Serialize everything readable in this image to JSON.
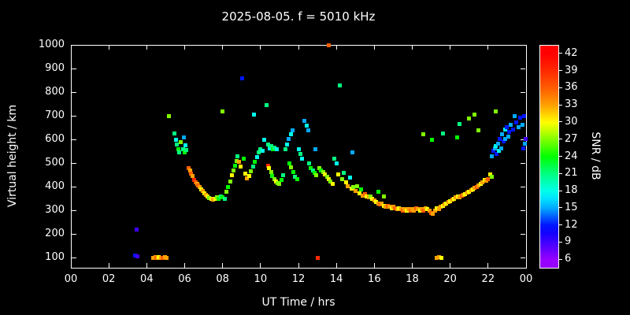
{
  "chart_data": {
    "type": "scatter",
    "title": "2025-08-05. f = 5010 kHz",
    "xlabel": "UT Time / hrs",
    "ylabel": "Virtual height / km",
    "colorbar_label": "SNR / dB",
    "background": "#000000",
    "axis_color": "#ffffff",
    "grid": false,
    "xlim_hours": [
      0,
      24
    ],
    "ylim": [
      100,
      1000
    ],
    "x_tick_hours": [
      0,
      2,
      4,
      6,
      8,
      10,
      12,
      14,
      16,
      18,
      20,
      22,
      24
    ],
    "x_tick_labels": [
      "00",
      "02",
      "04",
      "06",
      "08",
      "10",
      "12",
      "14",
      "16",
      "18",
      "20",
      "22",
      "00"
    ],
    "y_ticks": [
      100,
      200,
      300,
      400,
      500,
      600,
      700,
      800,
      900,
      1000
    ],
    "colorbar_ticks": [
      6,
      9,
      12,
      15,
      18,
      21,
      24,
      27,
      30,
      33,
      36,
      39,
      42
    ],
    "colorbar_range": [
      4.5,
      43.5
    ],
    "snr_hue_anchors": [
      [
        6,
        275
      ],
      [
        9,
        255
      ],
      [
        12,
        235
      ],
      [
        15,
        200
      ],
      [
        18,
        175
      ],
      [
        21,
        150
      ],
      [
        24,
        120
      ],
      [
        27,
        90
      ],
      [
        30,
        60
      ],
      [
        33,
        38
      ],
      [
        36,
        22
      ],
      [
        39,
        10
      ],
      [
        42,
        0
      ]
    ],
    "points": [
      [
        3.45,
        220,
        9
      ],
      [
        3.4,
        110,
        12
      ],
      [
        3.5,
        105,
        9
      ],
      [
        4.35,
        100,
        33
      ],
      [
        4.45,
        102,
        33
      ],
      [
        4.5,
        100,
        36
      ],
      [
        4.6,
        100,
        33
      ],
      [
        4.65,
        103,
        30
      ],
      [
        4.75,
        100,
        33
      ],
      [
        4.85,
        100,
        36
      ],
      [
        4.95,
        102,
        33
      ],
      [
        5.05,
        100,
        33
      ],
      [
        5.15,
        700,
        27
      ],
      [
        5.45,
        625,
        21
      ],
      [
        5.55,
        600,
        18
      ],
      [
        5.6,
        580,
        21
      ],
      [
        5.65,
        560,
        24
      ],
      [
        5.72,
        545,
        21
      ],
      [
        5.8,
        590,
        27
      ],
      [
        5.9,
        560,
        21
      ],
      [
        5.95,
        610,
        15
      ],
      [
        6.0,
        545,
        24
      ],
      [
        6.05,
        575,
        18
      ],
      [
        6.1,
        555,
        21
      ],
      [
        6.2,
        480,
        36
      ],
      [
        6.28,
        470,
        33
      ],
      [
        6.35,
        455,
        36
      ],
      [
        6.42,
        445,
        33
      ],
      [
        6.5,
        430,
        39
      ],
      [
        6.58,
        420,
        36
      ],
      [
        6.65,
        412,
        33
      ],
      [
        6.72,
        405,
        36
      ],
      [
        6.8,
        398,
        33
      ],
      [
        6.88,
        390,
        30
      ],
      [
        6.95,
        382,
        33
      ],
      [
        7.05,
        372,
        30
      ],
      [
        7.12,
        365,
        33
      ],
      [
        7.2,
        358,
        30
      ],
      [
        7.3,
        352,
        27
      ],
      [
        7.4,
        348,
        30
      ],
      [
        7.5,
        344,
        33
      ],
      [
        7.6,
        350,
        30
      ],
      [
        7.7,
        356,
        27
      ],
      [
        7.8,
        350,
        24
      ],
      [
        7.9,
        360,
        21
      ],
      [
        8.0,
        354,
        24
      ],
      [
        8.1,
        350,
        21
      ],
      [
        8.0,
        720,
        27
      ],
      [
        8.2,
        380,
        27
      ],
      [
        8.3,
        400,
        24
      ],
      [
        8.4,
        422,
        27
      ],
      [
        8.5,
        450,
        30
      ],
      [
        8.58,
        470,
        27
      ],
      [
        8.65,
        490,
        24
      ],
      [
        8.72,
        510,
        27
      ],
      [
        8.8,
        530,
        21
      ],
      [
        8.85,
        505,
        33
      ],
      [
        8.95,
        485,
        30
      ],
      [
        9.05,
        860,
        12
      ],
      [
        9.1,
        520,
        24
      ],
      [
        9.2,
        455,
        30
      ],
      [
        9.3,
        435,
        33
      ],
      [
        9.4,
        445,
        30
      ],
      [
        9.5,
        465,
        27
      ],
      [
        9.6,
        485,
        21
      ],
      [
        9.65,
        705,
        18
      ],
      [
        9.7,
        505,
        24
      ],
      [
        9.8,
        525,
        18
      ],
      [
        9.9,
        545,
        21
      ],
      [
        10.0,
        560,
        21
      ],
      [
        10.1,
        552,
        18
      ],
      [
        10.2,
        600,
        18
      ],
      [
        10.3,
        745,
        21
      ],
      [
        10.4,
        580,
        21
      ],
      [
        10.4,
        490,
        39
      ],
      [
        10.45,
        480,
        30
      ],
      [
        10.5,
        562,
        18
      ],
      [
        10.55,
        462,
        27
      ],
      [
        10.58,
        572,
        21
      ],
      [
        10.62,
        445,
        24
      ],
      [
        10.65,
        558,
        24
      ],
      [
        10.72,
        432,
        27
      ],
      [
        10.75,
        565,
        21
      ],
      [
        10.82,
        422,
        30
      ],
      [
        10.85,
        558,
        18
      ],
      [
        10.92,
        415,
        27
      ],
      [
        11.0,
        412,
        27
      ],
      [
        11.1,
        430,
        24
      ],
      [
        11.2,
        450,
        21
      ],
      [
        11.3,
        560,
        21
      ],
      [
        11.4,
        580,
        18
      ],
      [
        11.5,
        602,
        15
      ],
      [
        11.52,
        500,
        24
      ],
      [
        11.6,
        622,
        18
      ],
      [
        11.62,
        482,
        27
      ],
      [
        11.7,
        640,
        15
      ],
      [
        11.72,
        462,
        24
      ],
      [
        11.82,
        442,
        21
      ],
      [
        11.92,
        432,
        24
      ],
      [
        12.0,
        560,
        18
      ],
      [
        12.1,
        540,
        21
      ],
      [
        12.2,
        520,
        18
      ],
      [
        12.3,
        680,
        15
      ],
      [
        12.42,
        660,
        18
      ],
      [
        12.52,
        640,
        15
      ],
      [
        12.55,
        500,
        21
      ],
      [
        12.65,
        480,
        24
      ],
      [
        12.75,
        470,
        21
      ],
      [
        12.85,
        458,
        24
      ],
      [
        12.9,
        560,
        15
      ],
      [
        12.95,
        450,
        27
      ],
      [
        13.0,
        100,
        39
      ],
      [
        13.1,
        480,
        27
      ],
      [
        13.2,
        470,
        24
      ],
      [
        13.3,
        462,
        27
      ],
      [
        13.4,
        452,
        30
      ],
      [
        13.5,
        442,
        27
      ],
      [
        13.6,
        1000,
        36
      ],
      [
        13.6,
        432,
        30
      ],
      [
        13.7,
        422,
        27
      ],
      [
        13.8,
        412,
        30
      ],
      [
        13.9,
        520,
        21
      ],
      [
        14.0,
        500,
        18
      ],
      [
        14.1,
        452,
        30
      ],
      [
        14.2,
        830,
        21
      ],
      [
        14.3,
        432,
        27
      ],
      [
        14.4,
        460,
        21
      ],
      [
        14.5,
        420,
        30
      ],
      [
        14.6,
        402,
        33
      ],
      [
        14.7,
        440,
        18
      ],
      [
        14.8,
        392,
        30
      ],
      [
        14.85,
        545,
        15
      ],
      [
        14.9,
        398,
        27
      ],
      [
        15.0,
        382,
        33
      ],
      [
        15.1,
        402,
        27
      ],
      [
        15.2,
        372,
        30
      ],
      [
        15.3,
        390,
        24
      ],
      [
        15.4,
        362,
        33
      ],
      [
        15.5,
        370,
        36
      ],
      [
        15.6,
        358,
        30
      ],
      [
        15.7,
        354,
        33
      ],
      [
        15.8,
        360,
        27
      ],
      [
        15.9,
        350,
        30
      ],
      [
        16.0,
        342,
        33
      ],
      [
        16.1,
        336,
        30
      ],
      [
        16.2,
        380,
        24
      ],
      [
        16.22,
        330,
        33
      ],
      [
        16.3,
        326,
        36
      ],
      [
        16.4,
        330,
        33
      ],
      [
        16.5,
        360,
        27
      ],
      [
        16.52,
        320,
        30
      ],
      [
        16.6,
        316,
        33
      ],
      [
        16.7,
        320,
        36
      ],
      [
        16.8,
        314,
        33
      ],
      [
        16.9,
        310,
        30
      ],
      [
        17.0,
        316,
        33
      ],
      [
        17.1,
        310,
        36
      ],
      [
        17.2,
        306,
        33
      ],
      [
        17.3,
        310,
        30
      ],
      [
        17.4,
        304,
        33
      ],
      [
        17.5,
        300,
        36
      ],
      [
        17.6,
        306,
        33
      ],
      [
        17.7,
        300,
        30
      ],
      [
        17.8,
        306,
        33
      ],
      [
        17.9,
        300,
        36
      ],
      [
        18.0,
        306,
        33
      ],
      [
        18.1,
        300,
        33
      ],
      [
        18.2,
        310,
        36
      ],
      [
        18.3,
        304,
        33
      ],
      [
        18.4,
        300,
        30
      ],
      [
        18.5,
        306,
        33
      ],
      [
        18.6,
        300,
        36
      ],
      [
        18.6,
        622,
        27
      ],
      [
        18.7,
        310,
        33
      ],
      [
        18.8,
        304,
        30
      ],
      [
        18.9,
        298,
        33
      ],
      [
        19.0,
        290,
        36
      ],
      [
        19.02,
        600,
        24
      ],
      [
        19.1,
        284,
        33
      ],
      [
        19.2,
        300,
        33
      ],
      [
        19.3,
        308,
        30
      ],
      [
        19.3,
        100,
        33
      ],
      [
        19.4,
        304,
        33
      ],
      [
        19.4,
        102,
        33
      ],
      [
        19.5,
        314,
        33
      ],
      [
        19.52,
        100,
        30
      ],
      [
        19.6,
        320,
        30
      ],
      [
        19.6,
        625,
        21
      ],
      [
        19.7,
        326,
        33
      ],
      [
        19.8,
        330,
        30
      ],
      [
        19.9,
        336,
        33
      ],
      [
        20.0,
        340,
        30
      ],
      [
        20.1,
        344,
        33
      ],
      [
        20.2,
        350,
        30
      ],
      [
        20.3,
        356,
        33
      ],
      [
        20.38,
        610,
        24
      ],
      [
        20.4,
        360,
        30
      ],
      [
        20.5,
        356,
        33
      ],
      [
        20.5,
        665,
        21
      ],
      [
        20.6,
        362,
        36
      ],
      [
        20.7,
        366,
        33
      ],
      [
        20.8,
        370,
        30
      ],
      [
        20.9,
        376,
        33
      ],
      [
        21.0,
        380,
        30
      ],
      [
        21.0,
        690,
        27
      ],
      [
        21.1,
        386,
        33
      ],
      [
        21.2,
        390,
        30
      ],
      [
        21.3,
        396,
        33
      ],
      [
        21.3,
        705,
        27
      ],
      [
        21.4,
        400,
        36
      ],
      [
        21.5,
        406,
        33
      ],
      [
        21.5,
        640,
        27
      ],
      [
        21.6,
        412,
        30
      ],
      [
        21.7,
        420,
        33
      ],
      [
        21.8,
        430,
        30
      ],
      [
        21.9,
        426,
        33
      ],
      [
        22.0,
        432,
        36
      ],
      [
        22.1,
        452,
        30
      ],
      [
        22.2,
        442,
        27
      ],
      [
        22.2,
        530,
        15
      ],
      [
        22.28,
        552,
        12
      ],
      [
        22.35,
        562,
        15
      ],
      [
        22.4,
        720,
        27
      ],
      [
        22.42,
        572,
        18
      ],
      [
        22.45,
        540,
        12
      ],
      [
        22.52,
        582,
        15
      ],
      [
        22.58,
        552,
        18
      ],
      [
        22.62,
        602,
        12
      ],
      [
        22.68,
        562,
        15
      ],
      [
        22.75,
        622,
        15
      ],
      [
        22.8,
        592,
        12
      ],
      [
        22.88,
        642,
        18
      ],
      [
        22.92,
        602,
        15
      ],
      [
        23.0,
        652,
        12
      ],
      [
        23.05,
        612,
        15
      ],
      [
        23.1,
        632,
        12
      ],
      [
        23.2,
        662,
        15
      ],
      [
        23.3,
        642,
        12
      ],
      [
        23.4,
        700,
        15
      ],
      [
        23.5,
        672,
        12
      ],
      [
        23.6,
        652,
        15
      ],
      [
        23.7,
        692,
        12
      ],
      [
        23.8,
        662,
        15
      ],
      [
        23.85,
        562,
        12
      ],
      [
        23.9,
        700,
        12
      ],
      [
        23.92,
        582,
        15
      ],
      [
        23.96,
        602,
        9
      ]
    ]
  }
}
